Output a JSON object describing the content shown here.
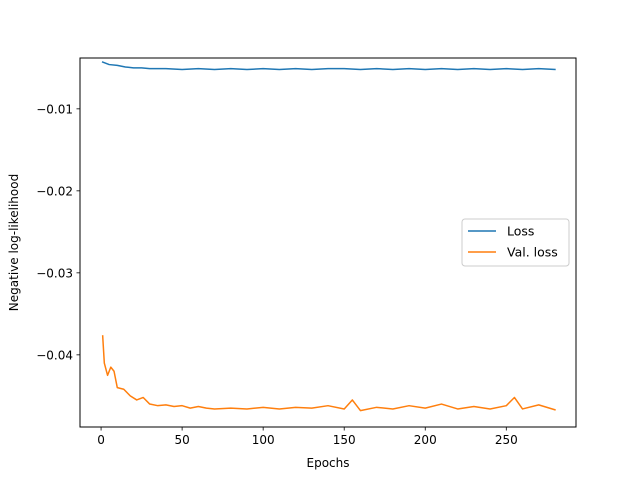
{
  "chart_data": {
    "type": "line",
    "title": "",
    "xlabel": "Epochs",
    "ylabel": "Negative log-likelihood",
    "xlim": [
      -13,
      293
    ],
    "ylim": [
      -0.0488,
      -0.0038
    ],
    "xticks": [
      0,
      50,
      100,
      150,
      200,
      250
    ],
    "yticks": [
      -0.01,
      -0.02,
      -0.03,
      -0.04
    ],
    "ytick_labels": [
      "−0.01",
      "−0.02",
      "−0.03",
      "−0.04"
    ],
    "grid": false,
    "legend": {
      "placement": "center-right"
    },
    "series": [
      {
        "name": "Loss",
        "color": "#1f77b4",
        "x": [
          1,
          5,
          10,
          15,
          20,
          25,
          30,
          40,
          50,
          60,
          70,
          80,
          90,
          100,
          110,
          120,
          130,
          140,
          150,
          160,
          170,
          180,
          190,
          200,
          210,
          220,
          230,
          240,
          250,
          260,
          270,
          280
        ],
        "y": [
          -0.0043,
          -0.0046,
          -0.0047,
          -0.0049,
          -0.005,
          -0.005,
          -0.0051,
          -0.0051,
          -0.0052,
          -0.0051,
          -0.0052,
          -0.0051,
          -0.0052,
          -0.0051,
          -0.0052,
          -0.0051,
          -0.0052,
          -0.0051,
          -0.0051,
          -0.0052,
          -0.0051,
          -0.0052,
          -0.0051,
          -0.0052,
          -0.0051,
          -0.0052,
          -0.0051,
          -0.0052,
          -0.0051,
          -0.0052,
          -0.0051,
          -0.0052
        ]
      },
      {
        "name": "Val. loss",
        "color": "#ff7f0e",
        "x": [
          1,
          2,
          4,
          6,
          8,
          10,
          14,
          18,
          22,
          26,
          30,
          35,
          40,
          45,
          50,
          55,
          60,
          65,
          70,
          80,
          90,
          100,
          110,
          120,
          130,
          140,
          150,
          155,
          160,
          170,
          180,
          190,
          200,
          210,
          220,
          230,
          240,
          250,
          255,
          260,
          270,
          280
        ],
        "y": [
          -0.0377,
          -0.041,
          -0.0425,
          -0.0415,
          -0.042,
          -0.044,
          -0.0442,
          -0.045,
          -0.0455,
          -0.0452,
          -0.046,
          -0.0462,
          -0.0461,
          -0.0463,
          -0.0462,
          -0.0465,
          -0.0463,
          -0.0465,
          -0.0466,
          -0.0465,
          -0.0466,
          -0.0464,
          -0.0466,
          -0.0464,
          -0.0465,
          -0.0462,
          -0.0466,
          -0.0455,
          -0.0468,
          -0.0464,
          -0.0466,
          -0.0462,
          -0.0465,
          -0.046,
          -0.0466,
          -0.0463,
          -0.0466,
          -0.0462,
          -0.0452,
          -0.0466,
          -0.0461,
          -0.0467
        ]
      }
    ]
  }
}
